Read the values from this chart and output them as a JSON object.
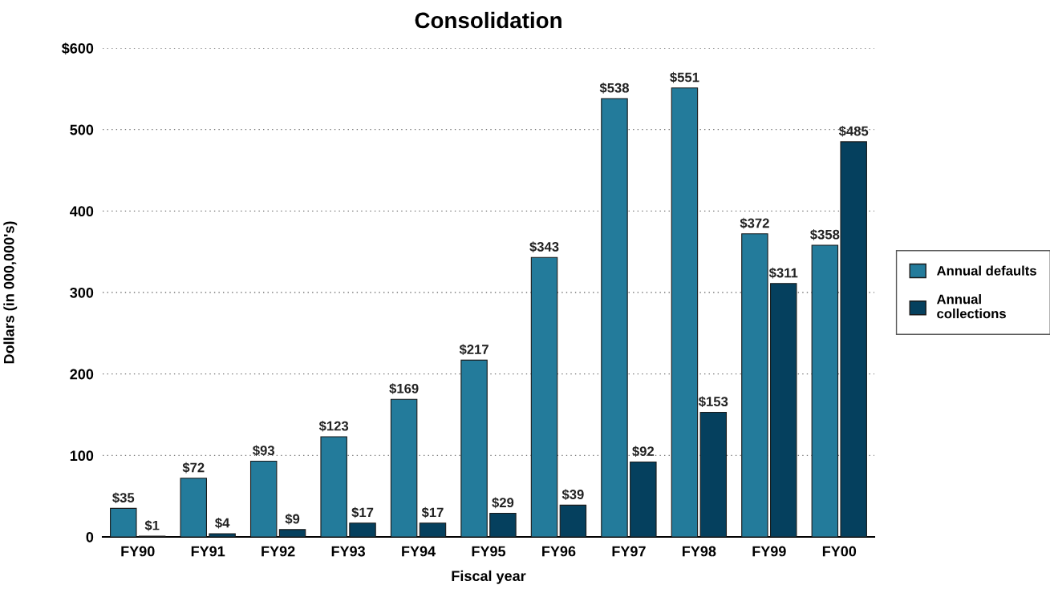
{
  "chart_data": {
    "type": "bar",
    "title": "Consolidation",
    "xlabel": "Fiscal year",
    "ylabel": "Dollars (in 000,000's)",
    "categories": [
      "FY90",
      "FY91",
      "FY92",
      "FY93",
      "FY94",
      "FY95",
      "FY96",
      "FY97",
      "FY98",
      "FY99",
      "FY00"
    ],
    "series": [
      {
        "name": "Annual defaults",
        "color": "#237b9b",
        "values": [
          35,
          72,
          93,
          123,
          169,
          217,
          343,
          538,
          551,
          372,
          358
        ],
        "value_labels": [
          "$35",
          "$72",
          "$93",
          "$123",
          "$169",
          "$217",
          "$343",
          "$538",
          "$551",
          "$372",
          "$358"
        ]
      },
      {
        "name": "Annual collections",
        "color": "#05405e",
        "values": [
          1,
          4,
          9,
          17,
          17,
          29,
          39,
          92,
          153,
          311,
          485
        ],
        "value_labels": [
          "$1",
          "$4",
          "$9",
          "$17",
          "$17",
          "$29",
          "$39",
          "$92",
          "$153",
          "$311",
          "$485"
        ]
      }
    ],
    "ylim": [
      0,
      600
    ],
    "yticks": [
      0,
      100,
      200,
      300,
      400,
      500,
      {
        "value": 600,
        "label": "$600"
      }
    ],
    "grid": "y",
    "legend": "right"
  }
}
